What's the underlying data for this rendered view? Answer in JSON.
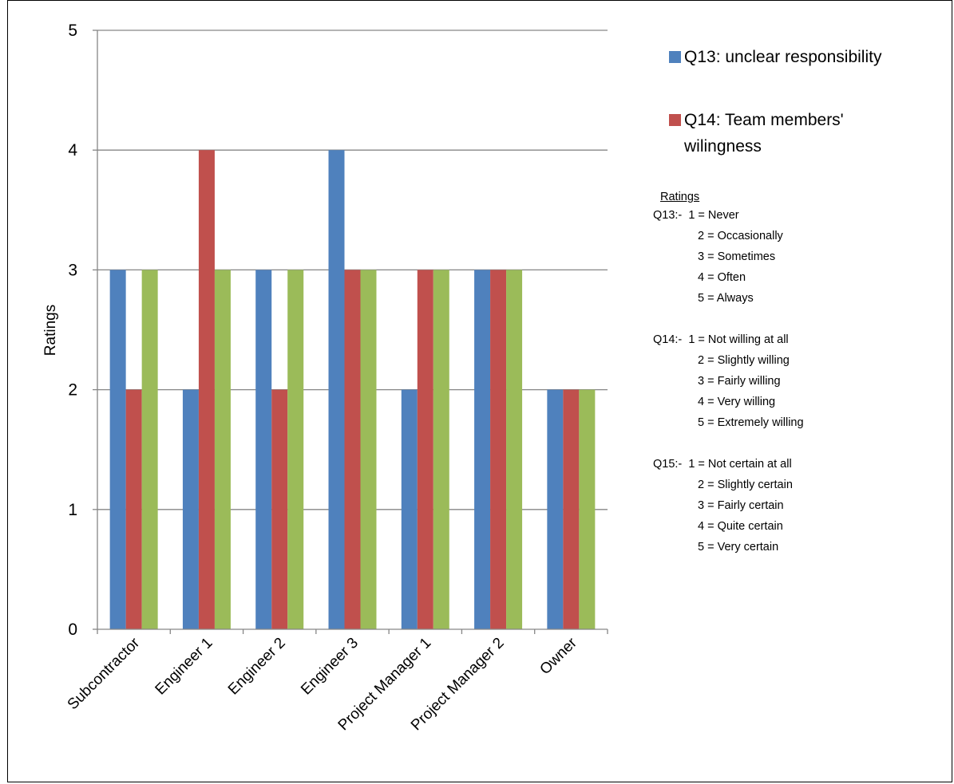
{
  "chart_data": {
    "type": "bar",
    "categories": [
      "Subcontractor",
      "Engineer 1",
      "Engineer 2",
      "Engineer 3",
      "Project Manager 1",
      "Project Manager 2",
      "Owner"
    ],
    "series": [
      {
        "name": "Q13: unclear responsibility",
        "color": "#4F81BD",
        "values": [
          3,
          2,
          3,
          4,
          2,
          3,
          2
        ]
      },
      {
        "name": "Q14: Team members' wilingness",
        "color": "#C0504D",
        "values": [
          2,
          4,
          2,
          3,
          3,
          3,
          2
        ]
      },
      {
        "name": "",
        "color": "#9BBB59",
        "values": [
          3,
          3,
          3,
          3,
          3,
          3,
          2
        ]
      }
    ],
    "ylabel": "Ratings",
    "ylim": [
      0,
      5
    ],
    "yticks": [
      "0",
      "1",
      "2",
      "3",
      "4",
      "5"
    ],
    "grid": true,
    "legend_position": "right"
  },
  "legend": [
    {
      "label": "Q13: unclear responsibility",
      "color": "#4F81BD"
    },
    {
      "label": "Q14: Team members'",
      "label2": "wilingness",
      "color": "#C0504D"
    }
  ],
  "notes": {
    "heading": "Ratings",
    "groups": [
      {
        "prefix": "Q13:-",
        "lines": [
          "1 = Never",
          "2 = Occasionally",
          "3 = Sometimes",
          "4 = Often",
          "5 = Always"
        ]
      },
      {
        "prefix": "Q14:-",
        "lines": [
          "1 = Not willing at all",
          "2 = Slightly willing",
          "3 = Fairly willing",
          "4 = Very willing",
          "5 = Extremely willing"
        ]
      },
      {
        "prefix": "Q15:-",
        "lines": [
          "1 = Not certain at all",
          "2 = Slightly certain",
          "3 = Fairly certain",
          "4 = Quite certain",
          "5 = Very certain"
        ]
      }
    ]
  }
}
